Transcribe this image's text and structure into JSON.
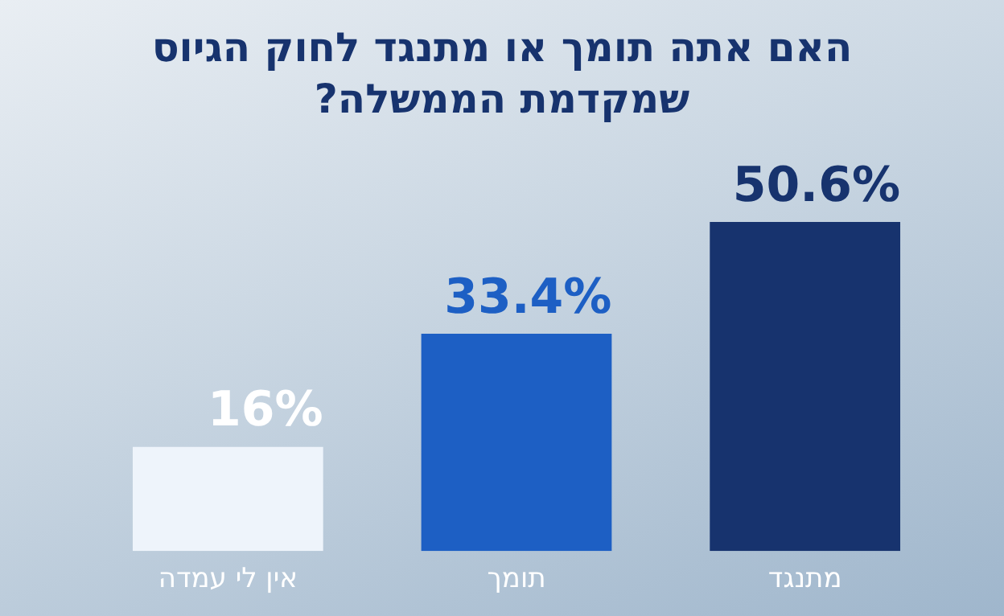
{
  "chart_data": {
    "type": "bar",
    "title": "האם אתה תומך או מתנגד לחוק הגיוס שמקדמת הממשלה?",
    "categories": [
      "אין לי עמדה",
      "תומך",
      "מתנגד"
    ],
    "values": [
      16,
      33.4,
      50.6
    ],
    "colors": [
      "#eef4fb",
      "#1d5fc4",
      "#17336e"
    ],
    "value_labels": [
      "16%",
      "33.4%",
      "50.6%"
    ],
    "grid": false,
    "legend": false
  }
}
